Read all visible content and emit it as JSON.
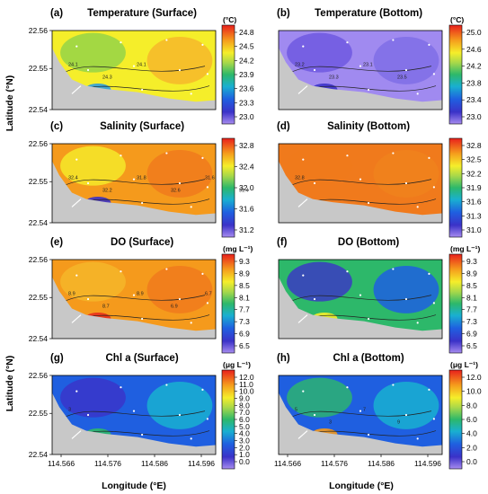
{
  "figure": {
    "y_axis_label": "Latitude (°N)",
    "x_axis_label": "Longitude (°E)"
  },
  "chart_data": [
    {
      "type": "heatmap",
      "label": "(a)",
      "title": "Temperature (Surface)",
      "unit": "(°C)",
      "colorbar_ticks": [
        "24.8",
        "24.5",
        "24.2",
        "23.9",
        "23.6",
        "23.3",
        "23.0"
      ],
      "vmin": 23.0,
      "vmax": 25.0,
      "contour_labels": [
        "24.1",
        "24.3",
        "24.1"
      ],
      "xticks": [],
      "yticks": [
        "22.56",
        "22.55",
        "22.54"
      ],
      "xlim": [
        114.561,
        114.599
      ],
      "ylim": [
        22.54,
        22.563
      ]
    },
    {
      "type": "heatmap",
      "label": "(b)",
      "title": "Temperature (Bottom)",
      "unit": "(°C)",
      "colorbar_ticks": [
        "25.0",
        "24.6",
        "24.2",
        "23.8",
        "23.4",
        "23.0"
      ],
      "vmin": 23.0,
      "vmax": 25.0,
      "contour_labels": [
        "23.2",
        "23.3",
        "23.1",
        "23.5"
      ],
      "xticks": [],
      "yticks": [],
      "xlim": [
        114.561,
        114.599
      ],
      "ylim": [
        22.54,
        22.563
      ]
    },
    {
      "type": "heatmap",
      "label": "(c)",
      "title": "Salinity (Surface)",
      "unit": "",
      "colorbar_ticks": [
        "32.8",
        "32.4",
        "32.0",
        "31.6",
        "31.2"
      ],
      "vmin": 31.0,
      "vmax": 33.0,
      "contour_labels": [
        "32.4",
        "32.2",
        "31.8",
        "32.6",
        "31.6",
        "31.4"
      ],
      "xticks": [],
      "yticks": [
        "22.56",
        "22.55",
        "22.54"
      ],
      "xlim": [
        114.561,
        114.599
      ],
      "ylim": [
        22.54,
        22.563
      ]
    },
    {
      "type": "heatmap",
      "label": "(d)",
      "title": "Salinity (Bottom)",
      "unit": "",
      "colorbar_ticks": [
        "32.8",
        "32.5",
        "32.2",
        "31.9",
        "31.6",
        "31.3",
        "31.0"
      ],
      "vmin": 31.0,
      "vmax": 33.0,
      "contour_labels": [
        "32.8"
      ],
      "xticks": [],
      "yticks": [],
      "xlim": [
        114.561,
        114.599
      ],
      "ylim": [
        22.54,
        22.563
      ]
    },
    {
      "type": "heatmap",
      "label": "(e)",
      "title": "DO (Surface)",
      "unit": "(mg L⁻¹)",
      "colorbar_ticks": [
        "9.3",
        "8.9",
        "8.5",
        "8.1",
        "7.7",
        "7.3",
        "6.9",
        "6.5"
      ],
      "vmin": 6.5,
      "vmax": 9.5,
      "contour_labels": [
        "8.9",
        "8.7",
        "8.9",
        "6.9",
        "6.7"
      ],
      "xticks": [],
      "yticks": [
        "22.56",
        "22.55",
        "22.54"
      ],
      "xlim": [
        114.561,
        114.599
      ],
      "ylim": [
        22.54,
        22.563
      ]
    },
    {
      "type": "heatmap",
      "label": "(f)",
      "title": "DO (Bottom)",
      "unit": "(mg L⁻¹)",
      "colorbar_ticks": [
        "9.3",
        "8.9",
        "8.5",
        "8.1",
        "7.7",
        "7.3",
        "6.9",
        "6.5"
      ],
      "vmin": 6.5,
      "vmax": 9.5,
      "contour_labels": [],
      "xticks": [],
      "yticks": [],
      "xlim": [
        114.561,
        114.599
      ],
      "ylim": [
        22.54,
        22.563
      ]
    },
    {
      "type": "heatmap",
      "label": "(g)",
      "title": "Chl a (Surface)",
      "unit": "(μg L⁻¹)",
      "colorbar_ticks": [
        "12.0",
        "11.0",
        "10.0",
        "9.0",
        "8.0",
        "7.0",
        "6.0",
        "5.0",
        "4.0",
        "3.0",
        "2.0",
        "1.0",
        "0.0"
      ],
      "vmin": 0.0,
      "vmax": 12.5,
      "contour_labels": [
        "3"
      ],
      "xticks": [
        "114.566",
        "114.576",
        "114.586",
        "114.596"
      ],
      "yticks": [
        "22.56",
        "22.55",
        "22.54"
      ],
      "xlim": [
        114.561,
        114.599
      ],
      "ylim": [
        22.54,
        22.563
      ]
    },
    {
      "type": "heatmap",
      "label": "(h)",
      "title": "Chl a (Bottom)",
      "unit": "(μg L⁻¹)",
      "colorbar_ticks": [
        "12.0",
        "10.0",
        "8.0",
        "6.0",
        "4.0",
        "2.0",
        "0.0"
      ],
      "vmin": 0.0,
      "vmax": 12.5,
      "contour_labels": [
        "5",
        "3",
        "7",
        "9"
      ],
      "xticks": [
        "114.566",
        "114.576",
        "114.586",
        "114.596"
      ],
      "yticks": [],
      "xlim": [
        114.561,
        114.599
      ],
      "ylim": [
        22.54,
        22.563
      ]
    }
  ]
}
